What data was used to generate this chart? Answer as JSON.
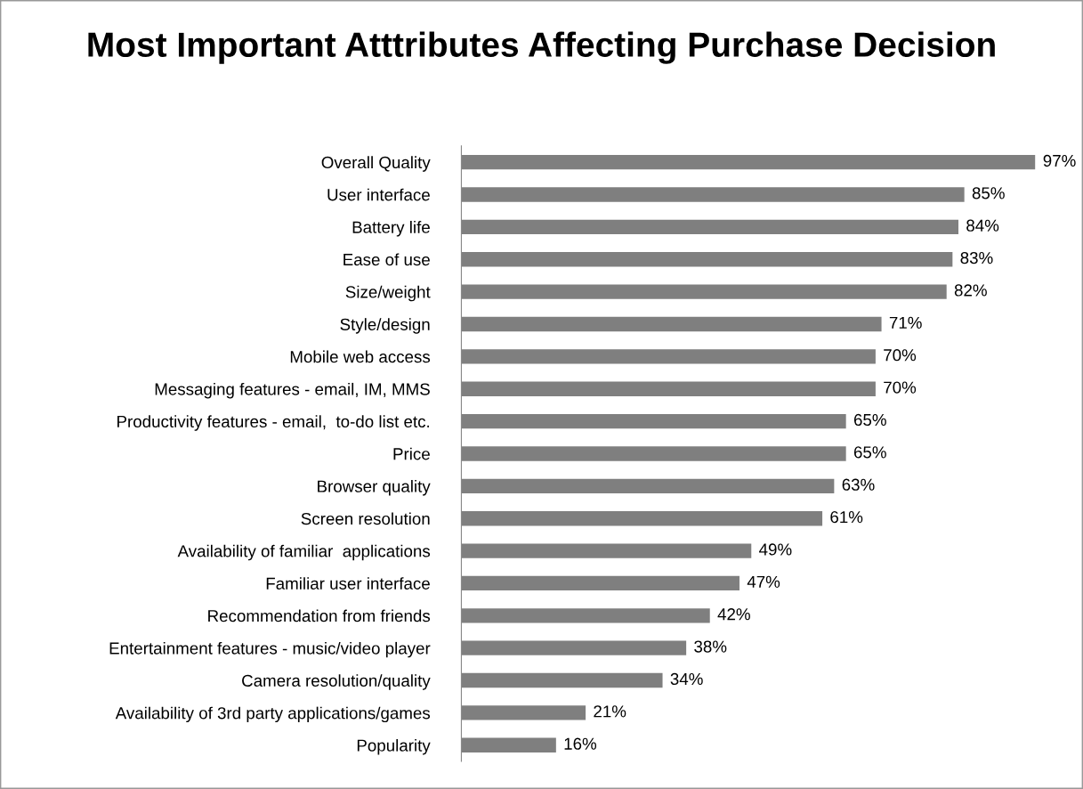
{
  "chart_data": {
    "type": "bar",
    "orientation": "horizontal",
    "title": "Most Important Atttributes Affecting Purchase Decision",
    "categories": [
      "Overall Quality",
      "User interface",
      "Battery life",
      "Ease of use",
      "Size/weight",
      "Style/design",
      "Mobile web access",
      "Messaging features - email, IM, MMS",
      "Productivity features - email,  to-do list etc.",
      "Price",
      "Browser quality",
      "Screen resolution",
      "Availability of familiar  applications",
      "Familiar user interface",
      "Recommendation from friends",
      "Entertainment features - music/video player",
      "Camera resolution/quality",
      "Availability of 3rd party applications/games",
      "Popularity"
    ],
    "values": [
      97,
      85,
      84,
      83,
      82,
      71,
      70,
      70,
      65,
      65,
      63,
      61,
      49,
      47,
      42,
      38,
      34,
      21,
      16
    ],
    "value_labels": [
      "97%",
      "85%",
      "84%",
      "83%",
      "82%",
      "71%",
      "70%",
      "70%",
      "65%",
      "65%",
      "63%",
      "61%",
      "49%",
      "47%",
      "42%",
      "38%",
      "34%",
      "21%",
      "16%"
    ],
    "color": "#7f7f7f",
    "tick_labels": "y",
    "grid": false,
    "legend": false
  }
}
